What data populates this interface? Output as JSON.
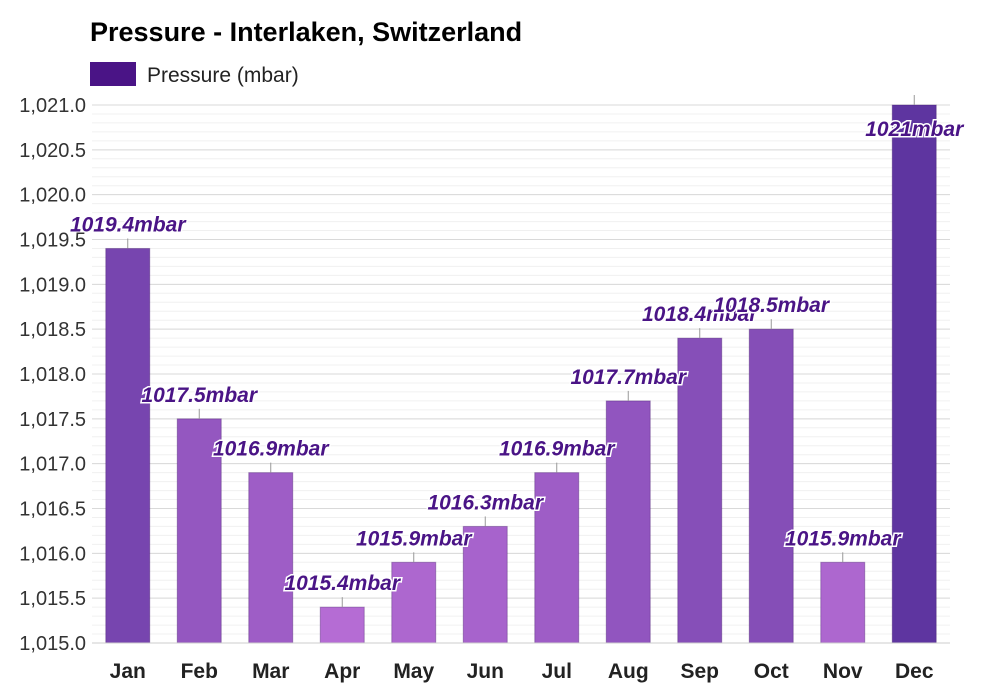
{
  "chart_data": {
    "type": "bar",
    "title": "Pressure - Interlaken, Switzerland",
    "series": [
      {
        "name": "Pressure (mbar)",
        "values": [
          1019.4,
          1017.5,
          1016.9,
          1015.4,
          1015.9,
          1016.3,
          1016.9,
          1017.7,
          1018.4,
          1018.5,
          1015.9,
          1021
        ]
      }
    ],
    "categories": [
      "Jan",
      "Feb",
      "Mar",
      "Apr",
      "May",
      "Jun",
      "Jul",
      "Aug",
      "Sep",
      "Oct",
      "Nov",
      "Dec"
    ],
    "data_labels": [
      "1019.4mbar",
      "1017.5mbar",
      "1016.9mbar",
      "1015.4mbar",
      "1015.9mbar",
      "1016.3mbar",
      "1016.9mbar",
      "1017.7mbar",
      "1018.4mbar",
      "1018.5mbar",
      "1015.9mbar",
      "1021mbar"
    ],
    "y_ticks": [
      "1,015.0",
      "1,015.5",
      "1,016.0",
      "1,016.5",
      "1,017.0",
      "1,017.5",
      "1,018.0",
      "1,018.5",
      "1,019.0",
      "1,019.5",
      "1,020.0",
      "1,020.5",
      "1,021.0"
    ],
    "ylim": [
      1015.0,
      1021.0
    ],
    "grid": true,
    "legend_position": "top-left",
    "colors": {
      "legend_swatch": "#4a1486",
      "label_text": "#4a1486",
      "bar_low": "#b56cd4",
      "bar_high": "#5e35a0"
    }
  }
}
